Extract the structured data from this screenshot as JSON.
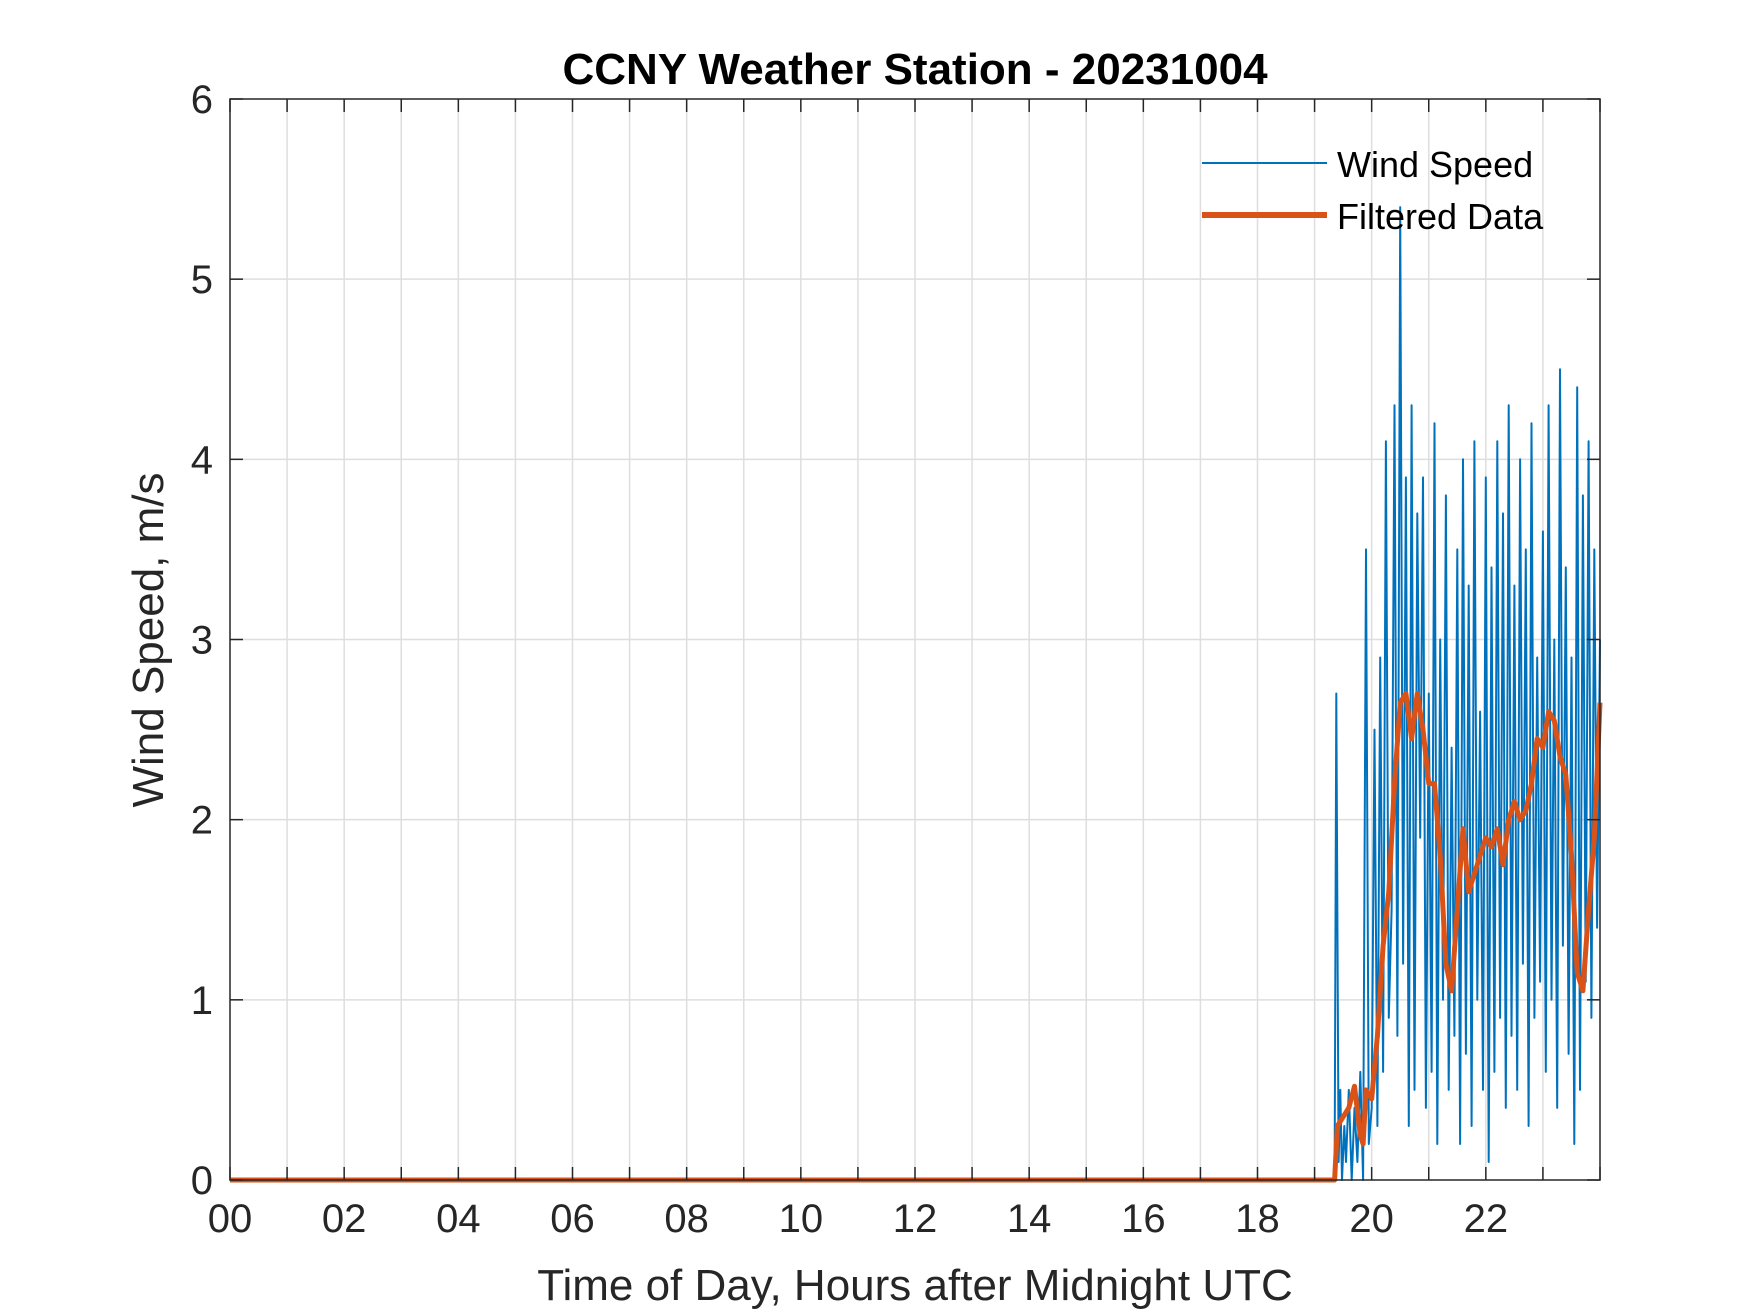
{
  "chart_data": {
    "type": "line",
    "title": "CCNY Weather Station - 20231004",
    "xlabel": "Time of Day, Hours after Midnight UTC",
    "ylabel": "Wind Speed, m/s",
    "xlim": [
      0,
      24
    ],
    "ylim": [
      0,
      6
    ],
    "xticks": [
      0,
      2,
      4,
      6,
      8,
      10,
      12,
      14,
      16,
      18,
      20,
      22
    ],
    "xtick_labels": [
      "00",
      "02",
      "04",
      "06",
      "08",
      "10",
      "12",
      "14",
      "16",
      "18",
      "20",
      "22"
    ],
    "yticks": [
      0,
      1,
      2,
      3,
      4,
      5,
      6
    ],
    "ytick_labels": [
      "0",
      "1",
      "2",
      "3",
      "4",
      "5",
      "6"
    ],
    "grid": true,
    "legend_position": "top-right",
    "series": [
      {
        "name": "Wind Speed",
        "color": "#0072BD",
        "x": [
          0,
          19.35,
          19.38,
          19.42,
          19.45,
          19.48,
          19.52,
          19.55,
          19.6,
          19.65,
          19.7,
          19.75,
          19.8,
          19.85,
          19.9,
          19.95,
          20.0,
          20.05,
          20.1,
          20.15,
          20.2,
          20.25,
          20.3,
          20.35,
          20.4,
          20.45,
          20.5,
          20.55,
          20.6,
          20.65,
          20.7,
          20.75,
          20.8,
          20.85,
          20.9,
          20.95,
          21.0,
          21.05,
          21.1,
          21.15,
          21.2,
          21.25,
          21.3,
          21.35,
          21.4,
          21.45,
          21.5,
          21.55,
          21.6,
          21.65,
          21.7,
          21.75,
          21.8,
          21.85,
          21.9,
          21.95,
          22.0,
          22.05,
          22.1,
          22.15,
          22.2,
          22.25,
          22.3,
          22.35,
          22.4,
          22.45,
          22.5,
          22.55,
          22.6,
          22.65,
          22.7,
          22.75,
          22.8,
          22.85,
          22.9,
          22.95,
          23.0,
          23.05,
          23.1,
          23.15,
          23.2,
          23.25,
          23.3,
          23.35,
          23.4,
          23.45,
          23.5,
          23.55,
          23.6,
          23.65,
          23.7,
          23.75,
          23.8,
          23.85,
          23.9,
          23.95,
          24.0
        ],
        "values": [
          0,
          0,
          2.7,
          0.1,
          0.5,
          0,
          0.3,
          0.1,
          0.5,
          0,
          0.4,
          0.1,
          0.6,
          0,
          3.5,
          0.2,
          0.4,
          2.5,
          0.3,
          2.9,
          0.6,
          4.1,
          0.9,
          1.5,
          4.3,
          0.8,
          5.4,
          1.2,
          3.9,
          0.3,
          4.3,
          0.5,
          3.7,
          1.9,
          3.9,
          0.4,
          2.7,
          0.6,
          4.2,
          0.2,
          3.0,
          1.0,
          3.8,
          0.5,
          2.4,
          0.8,
          3.5,
          0.2,
          4.0,
          0.7,
          3.3,
          0.3,
          4.1,
          1.0,
          2.6,
          0.5,
          3.9,
          0.1,
          3.4,
          0.6,
          4.1,
          0.9,
          3.7,
          0.4,
          4.3,
          0.8,
          3.3,
          0.5,
          4.0,
          1.2,
          3.5,
          0.3,
          4.2,
          0.9,
          2.9,
          1.1,
          3.6,
          0.6,
          4.3,
          1.0,
          3.0,
          0.4,
          4.5,
          1.3,
          3.4,
          0.7,
          2.9,
          0.2,
          4.4,
          0.5,
          3.8,
          1.1,
          4.1,
          0.9,
          3.5,
          1.4,
          3.0
        ]
      },
      {
        "name": "Filtered Data",
        "color": "#D95319",
        "x": [
          0,
          19.35,
          19.4,
          19.5,
          19.6,
          19.7,
          19.8,
          19.85,
          19.9,
          20.0,
          20.1,
          20.2,
          20.3,
          20.4,
          20.5,
          20.6,
          20.7,
          20.8,
          20.9,
          21.0,
          21.1,
          21.2,
          21.3,
          21.4,
          21.5,
          21.6,
          21.7,
          21.8,
          21.9,
          22.0,
          22.1,
          22.2,
          22.3,
          22.4,
          22.5,
          22.6,
          22.7,
          22.8,
          22.9,
          23.0,
          23.1,
          23.2,
          23.3,
          23.4,
          23.5,
          23.6,
          23.7,
          23.8,
          23.9,
          24.0
        ],
        "values": [
          0,
          0,
          0.3,
          0.35,
          0.4,
          0.52,
          0.25,
          0.2,
          0.5,
          0.45,
          0.8,
          1.3,
          1.6,
          2.2,
          2.65,
          2.7,
          2.45,
          2.7,
          2.5,
          2.2,
          2.2,
          1.8,
          1.2,
          1.05,
          1.5,
          1.95,
          1.6,
          1.7,
          1.8,
          1.9,
          1.85,
          1.95,
          1.75,
          2.0,
          2.1,
          2.0,
          2.05,
          2.2,
          2.45,
          2.4,
          2.6,
          2.55,
          2.35,
          2.25,
          1.8,
          1.15,
          1.05,
          1.5,
          1.9,
          2.65
        ]
      }
    ]
  }
}
